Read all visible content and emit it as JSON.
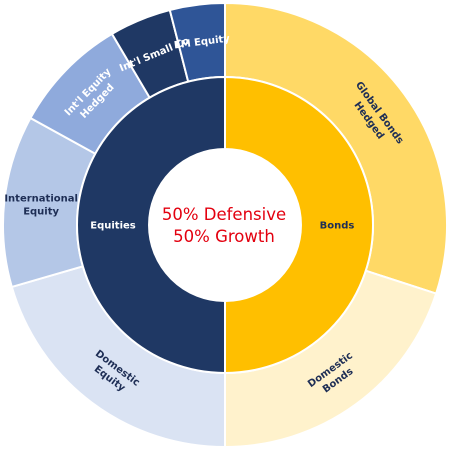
{
  "chart_data": {
    "type": "sunburst",
    "center_text": [
      "50% Defensive",
      "50% Growth"
    ],
    "center_text_color": "#e3000f",
    "inner_ring": [
      {
        "name": "Bonds",
        "value": 50,
        "color": "#ffbf00",
        "text_color": "#1e2e55"
      },
      {
        "name": "Equities",
        "value": 50,
        "color": "#1f3864",
        "text_color": "#ffffff"
      }
    ],
    "outer_ring": [
      {
        "name": "Global Bonds Hedged",
        "lines": [
          "Global Bonds",
          "Hedged"
        ],
        "value": 30,
        "parent": "Bonds",
        "color": "#ffd966",
        "text_color": "#1e2e55"
      },
      {
        "name": "Domestic Bonds",
        "lines": [
          "Domestic",
          "Bonds"
        ],
        "value": 20,
        "parent": "Bonds",
        "color": "#fff2cc",
        "text_color": "#1e2e55"
      },
      {
        "name": "Domestic Equity",
        "lines": [
          "Domestic",
          "Equity"
        ],
        "value": 20.5,
        "parent": "Equities",
        "color": "#dae3f3",
        "text_color": "#1e2e55"
      },
      {
        "name": "International Equity",
        "lines": [
          "International",
          "Equity"
        ],
        "value": 12.5,
        "parent": "Equities",
        "color": "#b4c7e7",
        "text_color": "#1e2e55"
      },
      {
        "name": "Int'l Equity Hedged",
        "lines": [
          "Int'l Equity",
          "Hedged"
        ],
        "value": 8.5,
        "parent": "Equities",
        "color": "#8faadc",
        "text_color": "#ffffff"
      },
      {
        "name": "Int'l Small Co",
        "lines": [
          "Int'l Small Co"
        ],
        "value": 4.5,
        "parent": "Equities",
        "color": "#1f3864",
        "text_color": "#ffffff"
      },
      {
        "name": "EM Equity",
        "lines": [
          "EM Equity"
        ],
        "value": 4,
        "parent": "Equities",
        "color": "#2f5597",
        "text_color": "#ffffff"
      }
    ]
  }
}
